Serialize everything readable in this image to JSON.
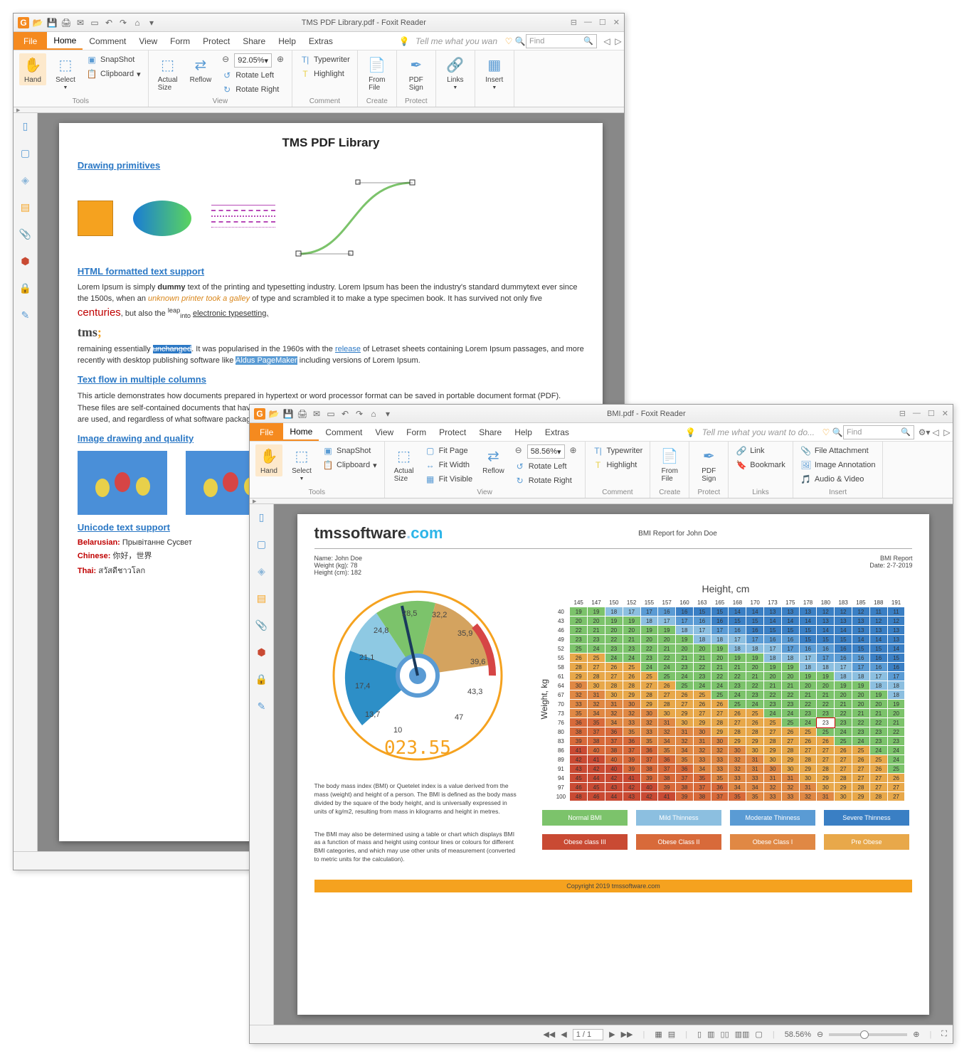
{
  "win1": {
    "qat_icons": [
      "folder-open",
      "save",
      "print",
      "mail",
      "snapshot",
      "undo",
      "redo",
      "home",
      "dropdown"
    ],
    "title": "TMS PDF Library.pdf - Foxit Reader",
    "sys": [
      "⊞",
      "—",
      "☐",
      "✕"
    ],
    "file_label": "File",
    "menu": [
      "Home",
      "Comment",
      "View",
      "Form",
      "Protect",
      "Share",
      "Help",
      "Extras"
    ],
    "active_menu": 0,
    "tell_me": "Tell me what you wan",
    "find_placeholder": "Find",
    "ribbon": {
      "tools": {
        "hand": "Hand",
        "select": "Select",
        "snapshot": "SnapShot",
        "clipboard": "Clipboard",
        "label": "Tools"
      },
      "view": {
        "actual": "Actual\nSize",
        "reflow": "Reflow",
        "zoom": "92.05%",
        "rotl": "Rotate Left",
        "rotr": "Rotate Right",
        "label": "View"
      },
      "comment": {
        "typewriter": "Typewriter",
        "highlight": "Highlight",
        "label": "Comment"
      },
      "create": {
        "from_file": "From\nFile",
        "label": "Create"
      },
      "protect": {
        "pdf_sign": "PDF\nSign",
        "label": "Protect"
      },
      "links": {
        "links": "Links",
        "label": ""
      },
      "insert": {
        "insert": "Insert",
        "label": ""
      }
    },
    "page": {
      "title": "TMS PDF Library",
      "sec1": "Drawing primitives",
      "sec2": "HTML formatted text support",
      "para1_a": "Lorem Ipsum is simply ",
      "para1_b": "dummy",
      "para1_c": " text of the printing and typesetting industry. Lorem Ipsum has been the industry's standard dummytext ever since the 1500s, when an ",
      "para1_it": "unknown printer took a galley",
      "para1_d": " of type and scrambled it to make a type specimen book. It has survived not only five ",
      "centuries": "centuries",
      "para1_e": ", but also the ",
      "leap": "leap",
      "into": "into",
      "para1_f": " electronic typesetting,",
      "tms": "tms",
      "para2_a": "remaining essentially ",
      "unchanged": "unchanged",
      "para2_b": ". It was popularised in the 1960s with the ",
      "release": "release",
      "para2_c": " of Letraset sheets containing Lorem Ipsum passages, and more recently with desktop publishing software like ",
      "aldus": "Aldus PageMaker",
      "para2_d": " including versions of Lorem Ipsum.",
      "sec3": "Text flow in multiple columns",
      "col_text": "This article demonstrates how documents prepared in hypertext or word processor format can be saved in portable document format (PDF). These files are self-contained documents that have the same appearance on screen and in print, regardless of what kind of computer or printer are used, and regardless of what software package was originally used to for their creation. PDF files are",
      "sec4": "Image drawing and quality",
      "sec5": "Unicode text support",
      "uni": [
        {
          "lang": "Belarusian",
          "txt": "Прывітанне Сусвет"
        },
        {
          "lang": "Chinese",
          "txt": "你好，世界"
        },
        {
          "lang": "Thai",
          "txt": "สวัสดีชาวโลก"
        }
      ]
    },
    "status": {
      "page": "1 / 1"
    }
  },
  "win2": {
    "qat_icons": [
      "folder-open",
      "save",
      "print",
      "mail",
      "snapshot",
      "undo",
      "redo",
      "home",
      "dropdown"
    ],
    "title": "BMI.pdf - Foxit Reader",
    "sys": [
      "⊞",
      "—",
      "☐",
      "✕"
    ],
    "file_label": "File",
    "menu": [
      "Home",
      "Comment",
      "View",
      "Form",
      "Protect",
      "Share",
      "Help",
      "Extras"
    ],
    "active_menu": 0,
    "tell_me": "Tell me what you want to do...",
    "find_placeholder": "Find",
    "ribbon": {
      "tools": {
        "hand": "Hand",
        "select": "Select",
        "snapshot": "SnapShot",
        "clipboard": "Clipboard",
        "label": "Tools"
      },
      "view": {
        "actual": "Actual\nSize",
        "reflow": "Reflow",
        "fitp": "Fit Page",
        "fitw": "Fit Width",
        "fitv": "Fit Visible",
        "zoom": "58.56%",
        "rotl": "Rotate Left",
        "rotr": "Rotate Right",
        "label": "View"
      },
      "comment": {
        "typewriter": "Typewriter",
        "highlight": "Highlight",
        "label": "Comment"
      },
      "create": {
        "from_file": "From\nFile",
        "label": "Create"
      },
      "protect": {
        "pdf_sign": "PDF\nSign",
        "label": "Protect"
      },
      "links": {
        "link": "Link",
        "bookmark": "Bookmark",
        "label": "Links"
      },
      "insert": {
        "file_att": "File Attachment",
        "img_ann": "Image Annotation",
        "av": "Audio & Video",
        "label": "Insert"
      }
    },
    "page": {
      "logo_a": "tmssoftware",
      "logo_b": ".",
      "logo_c": "com",
      "title": "BMI Report for John Doe",
      "name": "Name: John Doe",
      "weight": "Weight (kg): 78",
      "height": "Height (cm): 182",
      "bmi_lbl": "BMI Report",
      "date": "Date: 2-7-2019",
      "gauge": {
        "ticks": [
          "13,7",
          "17,4",
          "21,1",
          "24,8",
          "28,5",
          "32,2",
          "35,9",
          "39,6",
          "43,3",
          "47",
          "10"
        ],
        "digital": "023.55",
        "colors": {
          "blue": "#2d8fc7",
          "lblue": "#8ec9e3",
          "green": "#7cc36b",
          "tan": "#d4a35f",
          "red": "#d64545"
        }
      },
      "txt1": "The body mass index (BMI) or Quetelet index is a value derived from the mass (weight) and height of a person. The BMI is defined as the body mass divided by the square of the body height, and is universally expressed in units of kg/m2, resulting from mass in kilograms and height in metres.",
      "txt2": "The BMI may also be determined using a table or chart which displays BMI as a function of mass and height using contour lines or colours for different BMI categories, and which may use other units of measurement (converted to metric units for the calculation).",
      "chart_title": "Height, cm",
      "weight_label": "Weight, kg",
      "heights": [
        145,
        147,
        150,
        152,
        155,
        157,
        160,
        163,
        165,
        168,
        170,
        173,
        175,
        178,
        180,
        183,
        185,
        188,
        191
      ],
      "weights": [
        40,
        43,
        46,
        49,
        52,
        55,
        58,
        61,
        64,
        67,
        70,
        73,
        76,
        80,
        83,
        86,
        89,
        91,
        94,
        97,
        100
      ],
      "bmi_colors": {
        "sev": "#3a7fc4",
        "mod": "#5a9bd4",
        "mild": "#8cbfe0",
        "norm": "#7cc36b",
        "pre": "#e8a84a",
        "ob1": "#e08844",
        "ob2": "#d86a3a",
        "ob3": "#c94a33",
        "hi": "#d6d6d6"
      },
      "highlight_cell": "23",
      "legend1": [
        {
          "lbl": "Normal BMI",
          "c": "#7cc36b"
        },
        {
          "lbl": "Mild Thinness",
          "c": "#8cbfe0"
        },
        {
          "lbl": "Moderate Thinness",
          "c": "#5a9bd4"
        },
        {
          "lbl": "Severe Thinness",
          "c": "#3a7fc4"
        }
      ],
      "legend2": [
        {
          "lbl": "Obese class III",
          "c": "#c94a33"
        },
        {
          "lbl": "Obese Class II",
          "c": "#d86a3a"
        },
        {
          "lbl": "Obese Class I",
          "c": "#e08844"
        },
        {
          "lbl": "Pre Obese",
          "c": "#e8a84a"
        }
      ],
      "footer": "Copyright 2019 tmssoftware.com"
    },
    "status": {
      "page": "1 / 1",
      "zoom": "58.56%"
    }
  }
}
